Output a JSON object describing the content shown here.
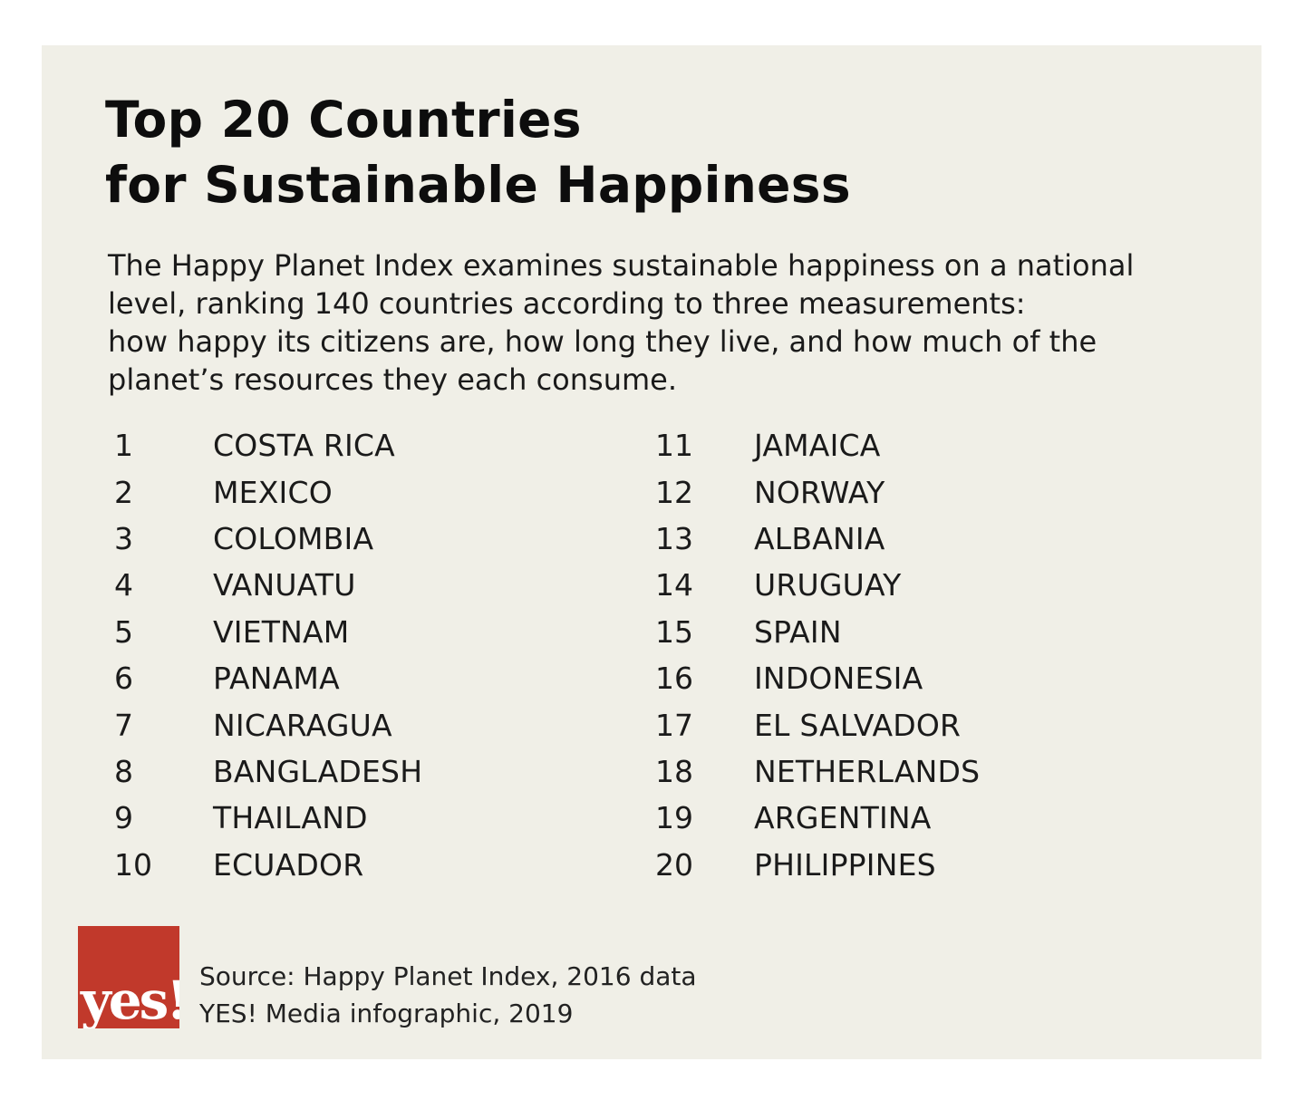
{
  "title": {
    "line1": "Top 20 Countries",
    "line2": "for Sustainable Happiness"
  },
  "intro": {
    "line1": "The Happy Planet Index examines sustainable happiness on a national",
    "line2": "level, ranking 140 countries according to three measurements:",
    "line3": "how happy its citizens are, how long they live, and how much of the",
    "line4": "planet’s resources they each consume."
  },
  "rankings": {
    "left": [
      {
        "rank": "1",
        "country": "COSTA RICA"
      },
      {
        "rank": "2",
        "country": "MEXICO"
      },
      {
        "rank": "3",
        "country": "COLOMBIA"
      },
      {
        "rank": "4",
        "country": "VANUATU"
      },
      {
        "rank": "5",
        "country": "VIETNAM"
      },
      {
        "rank": "6",
        "country": "PANAMA"
      },
      {
        "rank": "7",
        "country": "NICARAGUA"
      },
      {
        "rank": "8",
        "country": "BANGLADESH"
      },
      {
        "rank": "9",
        "country": "THAILAND"
      },
      {
        "rank": "10",
        "country": "ECUADOR"
      }
    ],
    "right": [
      {
        "rank": "11",
        "country": "JAMAICA"
      },
      {
        "rank": "12",
        "country": "NORWAY"
      },
      {
        "rank": "13",
        "country": "ALBANIA"
      },
      {
        "rank": "14",
        "country": "URUGUAY"
      },
      {
        "rank": "15",
        "country": "SPAIN"
      },
      {
        "rank": "16",
        "country": "INDONESIA"
      },
      {
        "rank": "17",
        "country": "EL SALVADOR"
      },
      {
        "rank": "18",
        "country": "NETHERLANDS"
      },
      {
        "rank": "19",
        "country": "ARGENTINA"
      },
      {
        "rank": "20",
        "country": "PHILIPPINES"
      }
    ]
  },
  "logo": {
    "text": "yes!",
    "color": "#c1392b"
  },
  "credits": {
    "source": "Source: Happy Planet Index, 2016 data",
    "byline": "YES! Media infographic, 2019"
  },
  "colors": {
    "background": "#f0efe7",
    "text": "#111111"
  }
}
